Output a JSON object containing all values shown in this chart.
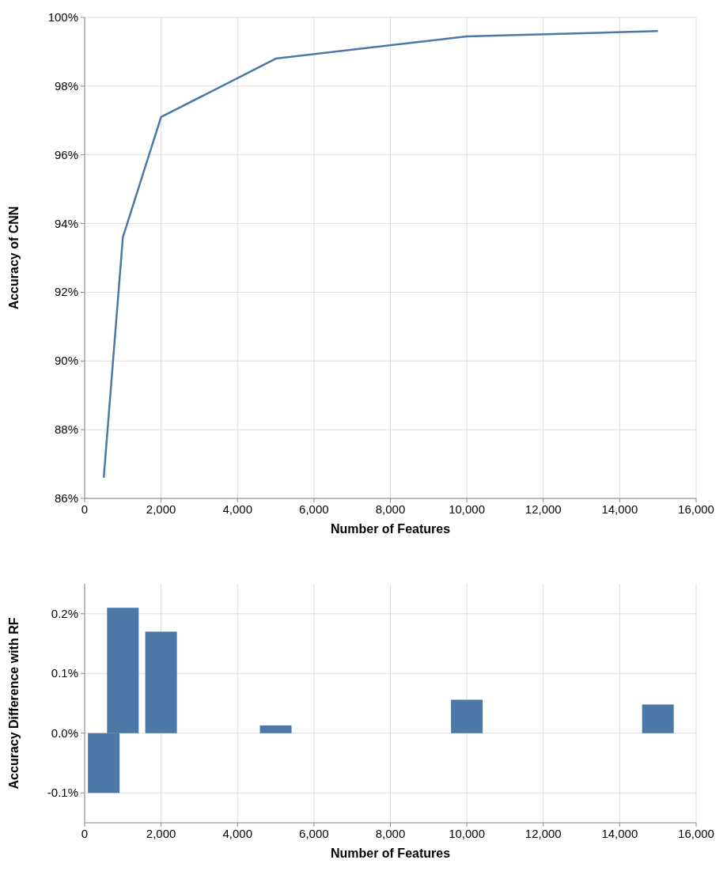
{
  "chart_data": [
    {
      "type": "line",
      "xlabel": "Number of Features",
      "ylabel": "Accuracy of CNN",
      "x": [
        500,
        1000,
        2000,
        5000,
        10000,
        15000
      ],
      "series": [
        {
          "color": "#4c78a8",
          "values": [
            86.6,
            93.6,
            97.1,
            98.8,
            99.45,
            99.6
          ]
        }
      ],
      "xlim": [
        0,
        16000
      ],
      "xticks": [
        0,
        {
          "value": 2000,
          "label": "2,000"
        },
        {
          "value": 4000,
          "label": "4,000"
        },
        {
          "value": 6000,
          "label": "6,000"
        },
        {
          "value": 8000,
          "label": "8,000"
        },
        {
          "value": 10000,
          "label": "10,000"
        },
        {
          "value": 12000,
          "label": "12,000"
        },
        {
          "value": 14000,
          "label": "14,000"
        },
        {
          "value": 16000,
          "label": "16,000"
        }
      ],
      "ylim": [
        86,
        100
      ],
      "yticks": [
        {
          "value": 86,
          "label": "86%"
        },
        {
          "value": 88,
          "label": "88%"
        },
        {
          "value": 90,
          "label": "90%"
        },
        {
          "value": 92,
          "label": "92%"
        },
        {
          "value": 94,
          "label": "94%"
        },
        {
          "value": 96,
          "label": "96%"
        },
        {
          "value": 98,
          "label": "98%"
        },
        {
          "value": 100,
          "label": "100%"
        }
      ],
      "grid": true,
      "line_style": "solid"
    },
    {
      "type": "bar",
      "xlabel": "Number of Features",
      "ylabel": "Accuracy Difference with RF",
      "x": [
        500,
        1000,
        2000,
        5000,
        10000,
        15000
      ],
      "series": [
        {
          "color": "#4c78a8",
          "values": [
            -0.1,
            0.21,
            0.17,
            0.013,
            0.056,
            0.048
          ]
        }
      ],
      "xlim": [
        0,
        16000
      ],
      "xticks": [
        0,
        {
          "value": 2000,
          "label": "2,000"
        },
        {
          "value": 4000,
          "label": "4,000"
        },
        {
          "value": 6000,
          "label": "6,000"
        },
        {
          "value": 8000,
          "label": "8,000"
        },
        {
          "value": 10000,
          "label": "10,000"
        },
        {
          "value": 12000,
          "label": "12,000"
        },
        {
          "value": 14000,
          "label": "14,000"
        },
        {
          "value": 16000,
          "label": "16,000"
        }
      ],
      "ylim": [
        -0.15,
        0.25
      ],
      "yticks": [
        {
          "value": -0.1,
          "label": "-0.1%"
        },
        {
          "value": 0,
          "label": "0.0%"
        },
        {
          "value": 0.1,
          "label": "0.1%"
        },
        {
          "value": 0.2,
          "label": "0.2%"
        }
      ],
      "grid": true
    }
  ]
}
